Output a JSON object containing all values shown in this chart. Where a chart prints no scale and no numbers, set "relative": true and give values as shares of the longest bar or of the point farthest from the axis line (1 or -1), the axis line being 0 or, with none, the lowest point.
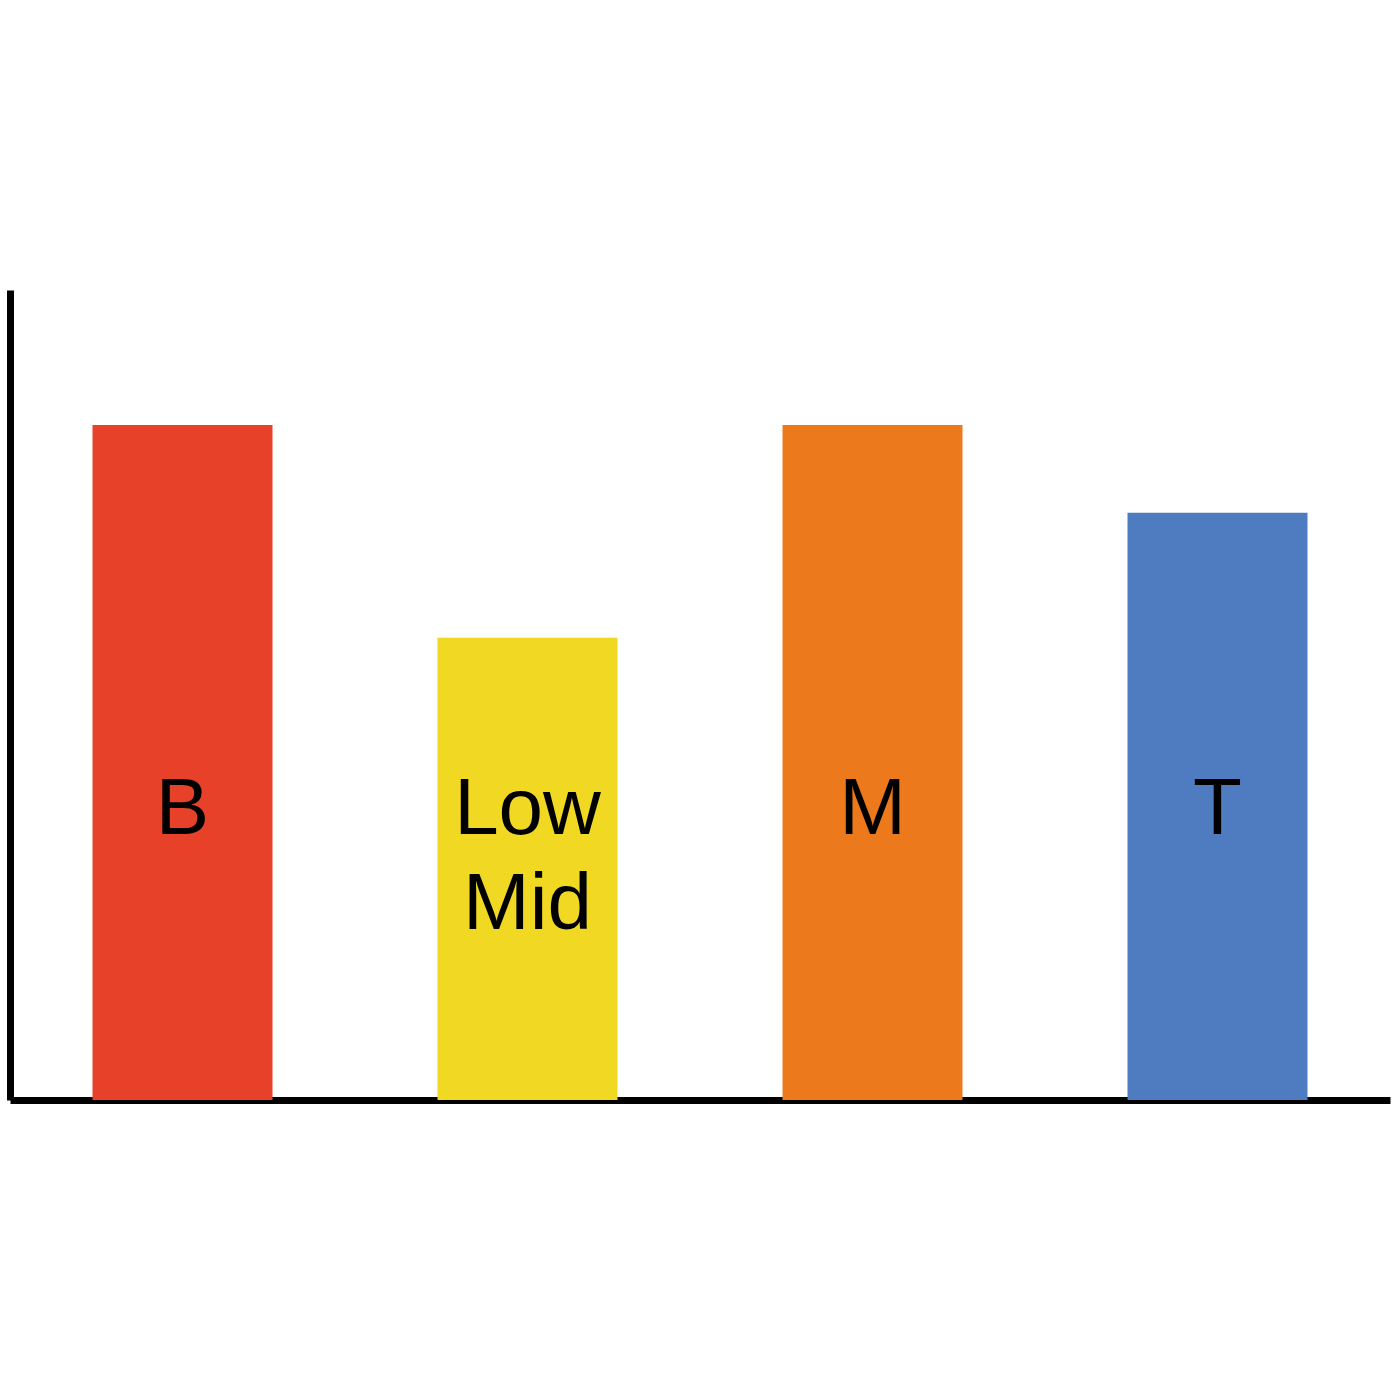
{
  "chart_data": {
    "type": "bar",
    "relative": true,
    "categories": [
      "B",
      "Low Mid",
      "M",
      "T"
    ],
    "values": [
      1,
      0.685,
      1,
      0.87
    ],
    "colors": [
      "#e8412a",
      "#f0d823",
      "#ec7a1c",
      "#4f7cc0"
    ],
    "grid": false,
    "legend": false
  }
}
